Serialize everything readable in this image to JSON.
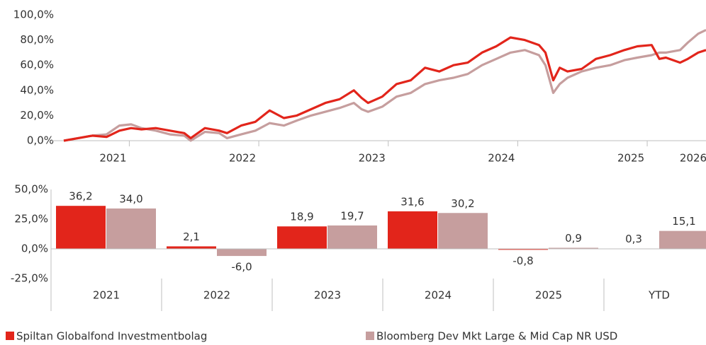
{
  "chart_data": [
    {
      "type": "line",
      "x": [
        2020.62,
        2020.73,
        2020.84,
        2020.95,
        2021.05,
        2021.14,
        2021.22,
        2021.33,
        2021.44,
        2021.55,
        2021.6,
        2021.71,
        2021.82,
        2021.88,
        2021.99,
        2022.1,
        2022.21,
        2022.32,
        2022.42,
        2022.53,
        2022.64,
        2022.75,
        2022.86,
        2022.92,
        2022.97,
        2023.08,
        2023.19,
        2023.3,
        2023.41,
        2023.52,
        2023.63,
        2023.74,
        2023.85,
        2023.96,
        2024.07,
        2024.18,
        2024.29,
        2024.34,
        2024.4,
        2024.45,
        2024.51,
        2024.62,
        2024.73,
        2024.84,
        2024.95,
        2025.05,
        2025.16,
        2025.22,
        2025.27,
        2025.38,
        2025.44,
        2025.52,
        2025.58
      ],
      "series": [
        {
          "color": "#e2251b",
          "values": [
            0,
            2,
            4,
            3,
            8,
            10,
            9,
            10,
            8,
            6,
            2,
            10,
            8,
            6,
            12,
            15,
            24,
            18,
            20,
            25,
            30,
            33,
            40,
            34,
            30,
            35,
            45,
            48,
            58,
            55,
            60,
            62,
            70,
            75,
            82,
            80,
            76,
            70,
            48,
            58,
            55,
            57,
            65,
            68,
            72,
            75,
            76,
            65,
            66,
            62,
            65,
            70,
            72
          ]
        },
        {
          "color": "#c69e9e",
          "values": [
            0,
            2,
            4,
            5,
            12,
            13,
            10,
            8,
            5,
            4,
            0,
            7,
            6,
            2,
            5,
            8,
            14,
            12,
            16,
            20,
            23,
            26,
            30,
            25,
            23,
            27,
            35,
            38,
            45,
            48,
            50,
            53,
            60,
            65,
            70,
            72,
            68,
            60,
            38,
            45,
            50,
            55,
            58,
            60,
            64,
            66,
            68,
            70,
            70,
            72,
            78,
            85,
            88
          ]
        }
      ],
      "xlim": [
        2020.62,
        2025.58
      ],
      "xticks": [
        2021,
        2022,
        2023,
        2024,
        2025,
        2026
      ],
      "ylim": [
        0,
        100
      ],
      "yticks": [
        {
          "value": 0,
          "label": "0,0%"
        },
        {
          "value": 20,
          "label": "20,0%"
        },
        {
          "value": 40,
          "label": "40,0%"
        },
        {
          "value": 60,
          "label": "60,0%"
        },
        {
          "value": 80,
          "label": "80,0%"
        },
        {
          "value": 100,
          "label": "100,0%"
        }
      ]
    },
    {
      "type": "bar",
      "categories": [
        "2021",
        "2022",
        "2023",
        "2024",
        "2025",
        "YTD"
      ],
      "series": [
        {
          "name": "Spiltan Globalfond Investmentbolag",
          "color": "#e2251b",
          "values": [
            36.2,
            2.1,
            18.9,
            31.6,
            -0.8,
            0.3
          ],
          "value_labels": [
            "36,2",
            "2,1",
            "18,9",
            "31,6",
            "-0,8",
            "0,3"
          ]
        },
        {
          "name": "Bloomberg Dev Mkt Large & Mid Cap NR USD",
          "color": "#c69e9e",
          "values": [
            34.0,
            -6.0,
            19.7,
            30.2,
            0.9,
            15.1
          ],
          "value_labels": [
            "34,0",
            "-6,0",
            "19,7",
            "30,2",
            "0,9",
            "15,1"
          ]
        }
      ],
      "ylim": [
        -25,
        50
      ],
      "yticks": [
        {
          "value": -25,
          "label": "-25,0%"
        },
        {
          "value": 0,
          "label": "0,0%"
        },
        {
          "value": 25,
          "label": "25,0%"
        },
        {
          "value": 50,
          "label": "50,0%"
        }
      ],
      "legend": "bottom"
    }
  ]
}
